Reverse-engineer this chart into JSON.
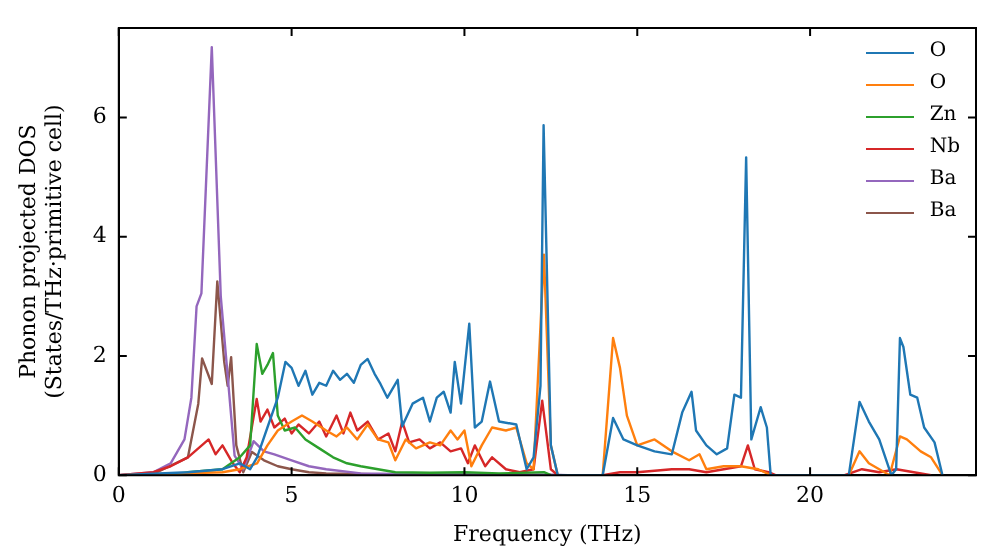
{
  "chart_data": {
    "type": "line",
    "xlabel": "Frequency (THz)",
    "ylabel": "Phonon projected DOS\n(States/THz·primitive cell)",
    "xlim": [
      0,
      24.8
    ],
    "ylim": [
      0,
      7.5
    ],
    "xticks": [
      0,
      5,
      10,
      15,
      20
    ],
    "yticks": [
      0,
      2,
      4,
      6
    ],
    "legend": "top right",
    "marker": "none",
    "line_style": "solid",
    "series": [
      {
        "name": "O",
        "color": "#1f77b4",
        "x": [
          0,
          2,
          3,
          3.5,
          3.8,
          4,
          4.3,
          4.6,
          4.82,
          5,
          5.2,
          5.4,
          5.6,
          5.8,
          6,
          6.2,
          6.4,
          6.6,
          6.8,
          7,
          7.2,
          7.4,
          7.57,
          7.77,
          8.07,
          8.2,
          8.5,
          8.8,
          9,
          9.2,
          9.4,
          9.6,
          9.72,
          9.9,
          10.14,
          10.3,
          10.5,
          10.74,
          11,
          11.5,
          11.8,
          12,
          12.2,
          12.29,
          12.5,
          12.7,
          14,
          14.3,
          14.6,
          15,
          15.5,
          16,
          16.3,
          16.57,
          16.7,
          17,
          17.3,
          17.6,
          17.81,
          18,
          18.15,
          18.3,
          18.57,
          18.75,
          18.86,
          21.12,
          21.43,
          21.7,
          22,
          22.35,
          22.49,
          22.6,
          22.7,
          22.9,
          23.1,
          23.3,
          23.6,
          23.83
        ],
        "values": [
          0,
          0.05,
          0.1,
          0.2,
          0.1,
          0.3,
          0.8,
          1.3,
          1.9,
          1.8,
          1.5,
          1.75,
          1.35,
          1.55,
          1.5,
          1.75,
          1.6,
          1.7,
          1.55,
          1.85,
          1.95,
          1.7,
          1.53,
          1.3,
          1.6,
          0.82,
          1.2,
          1.3,
          0.9,
          1.3,
          1.4,
          1.05,
          1.9,
          1.2,
          2.54,
          0.8,
          0.9,
          1.57,
          0.9,
          0.85,
          0.1,
          0.3,
          1.5,
          5.87,
          0.5,
          0,
          0,
          0.96,
          0.6,
          0.5,
          0.4,
          0.35,
          1.05,
          1.4,
          0.75,
          0.5,
          0.35,
          0.45,
          1.35,
          1.3,
          5.33,
          0.6,
          1.14,
          0.8,
          0,
          0,
          1.23,
          0.9,
          0.6,
          0,
          0.1,
          2.3,
          2.15,
          1.35,
          1.3,
          0.8,
          0.55,
          0
        ]
      },
      {
        "name": "O",
        "color": "#ff7f0e",
        "x": [
          0,
          3,
          3.5,
          4,
          4.3,
          4.6,
          5,
          5.3,
          5.6,
          6,
          6.3,
          6.6,
          6.9,
          7.2,
          7.5,
          7.8,
          8,
          8.3,
          8.6,
          9,
          9.3,
          9.6,
          9.8,
          10,
          10.2,
          10.5,
          10.8,
          11.2,
          11.5,
          11.8,
          12,
          12.3,
          12.5,
          12.7,
          14,
          14.3,
          14.5,
          14.7,
          15,
          15.5,
          16,
          16.5,
          16.8,
          17,
          17.5,
          18,
          18.5,
          18.86,
          21.12,
          21.43,
          21.7,
          22.3,
          22.6,
          22.8,
          23.2,
          23.5,
          23.83
        ],
        "values": [
          0,
          0.05,
          0.1,
          0.2,
          0.5,
          0.75,
          0.9,
          1,
          0.9,
          0.75,
          0.65,
          0.8,
          0.6,
          0.85,
          0.6,
          0.55,
          0.25,
          0.6,
          0.45,
          0.55,
          0.5,
          0.75,
          0.6,
          0.75,
          0.15,
          0.5,
          0.8,
          0.75,
          0.8,
          0.2,
          0.1,
          3.7,
          0.5,
          0,
          0,
          2.3,
          1.8,
          1,
          0.5,
          0.6,
          0.4,
          0.25,
          0.35,
          0.1,
          0.15,
          0.15,
          0.1,
          0,
          0,
          0.4,
          0.2,
          0,
          0.65,
          0.6,
          0.4,
          0.3,
          0
        ]
      },
      {
        "name": "Zn",
        "color": "#2ca02c",
        "x": [
          0,
          1.5,
          2,
          3,
          3.5,
          3.8,
          3.99,
          4.15,
          4.3,
          4.46,
          4.6,
          4.8,
          5.1,
          5.4,
          5.8,
          6.2,
          6.6,
          7,
          7.5,
          8,
          9,
          10,
          11,
          12.3,
          12.5
        ],
        "values": [
          0,
          0,
          0.05,
          0.1,
          0.3,
          0.5,
          2.2,
          1.7,
          1.85,
          2.05,
          1,
          0.75,
          0.8,
          0.6,
          0.45,
          0.3,
          0.2,
          0.15,
          0.1,
          0.05,
          0.04,
          0.05,
          0.03,
          0.05,
          0
        ]
      },
      {
        "name": "Nb",
        "color": "#d62728",
        "x": [
          0,
          1,
          1.5,
          2,
          2.3,
          2.6,
          2.8,
          3,
          3.3,
          3.5,
          3.7,
          3.99,
          4.1,
          4.3,
          4.5,
          4.8,
          5,
          5.2,
          5.5,
          5.8,
          6,
          6.3,
          6.5,
          6.7,
          6.9,
          7.2,
          7.5,
          7.8,
          8,
          8.2,
          8.4,
          8.7,
          9,
          9.3,
          9.6,
          9.9,
          10.1,
          10.3,
          10.6,
          10.8,
          11.2,
          11.6,
          12,
          12.25,
          12.5,
          12.7,
          14,
          14.5,
          15,
          16,
          16.5,
          17,
          18,
          18.2,
          18.4,
          18.8,
          19,
          21,
          21.5,
          22,
          22.5,
          23,
          23.5
        ],
        "values": [
          0,
          0.05,
          0.15,
          0.3,
          0.45,
          0.6,
          0.35,
          0.5,
          0.2,
          0.05,
          0.3,
          1.28,
          0.9,
          1.1,
          0.8,
          0.95,
          0.7,
          0.85,
          0.7,
          0.9,
          0.65,
          1,
          0.7,
          1.05,
          0.75,
          0.9,
          0.6,
          0.7,
          0.4,
          0.9,
          0.55,
          0.6,
          0.45,
          0.55,
          0.4,
          0.45,
          0.2,
          0.5,
          0.15,
          0.3,
          0.1,
          0.05,
          0.1,
          1.25,
          0.1,
          0,
          0,
          0.05,
          0.05,
          0.1,
          0.1,
          0.05,
          0.15,
          0.5,
          0.1,
          0.05,
          0,
          0,
          0.1,
          0.05,
          0.1,
          0.05,
          0
        ]
      },
      {
        "name": "Ba",
        "color": "#9467bd",
        "x": [
          0,
          1,
          1.5,
          1.9,
          2.1,
          2.25,
          2.39,
          2.69,
          2.95,
          3.1,
          3.35,
          3.6,
          3.9,
          4.2,
          4.5,
          5,
          5.5,
          6,
          7,
          8,
          12.5,
          13
        ],
        "values": [
          0,
          0.05,
          0.2,
          0.6,
          1.3,
          2.83,
          3.05,
          7.18,
          3,
          2,
          0.33,
          0.1,
          0.57,
          0.4,
          0.35,
          0.25,
          0.15,
          0.1,
          0.03,
          0.02,
          0.01,
          0
        ]
      },
      {
        "name": "Ba",
        "color": "#8c564b",
        "x": [
          0,
          1,
          2,
          2.3,
          2.41,
          2.69,
          2.85,
          3.05,
          3.15,
          3.25,
          3.4,
          3.6,
          3.85,
          4.2,
          4.6,
          5,
          5.5,
          6,
          7,
          8,
          13
        ],
        "values": [
          0,
          0.02,
          0.3,
          1.2,
          1.96,
          1.53,
          3.25,
          1.9,
          1.5,
          1.98,
          0.5,
          0.05,
          0.39,
          0.25,
          0.15,
          0.1,
          0.05,
          0.03,
          0.02,
          0.01,
          0
        ]
      }
    ]
  }
}
